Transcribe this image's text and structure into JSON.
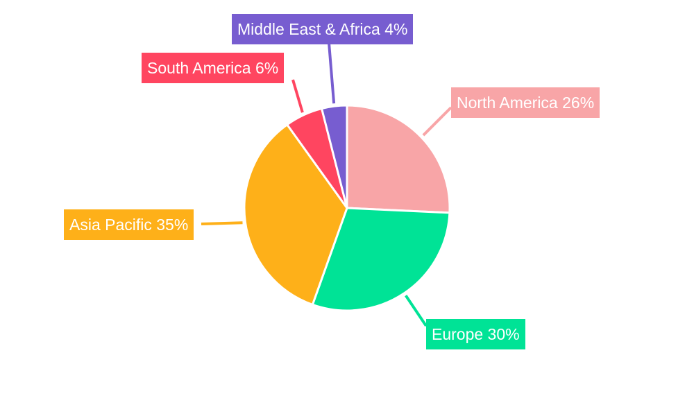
{
  "chart_data": {
    "type": "pie",
    "title": "",
    "start_angle": "12 o'clock, clockwise",
    "legend": "none (outside callout labels)",
    "slices": [
      {
        "label": "North America",
        "value": 26,
        "text": "North America 26%",
        "color": "#F8A5A7"
      },
      {
        "label": "Europe",
        "value": 30,
        "text": "Europe 30%",
        "color": "#00E396"
      },
      {
        "label": "Asia Pacific",
        "value": 35,
        "text": "Asia Pacific 35%",
        "color": "#FEB019"
      },
      {
        "label": "South America",
        "value": 6,
        "text": "South America 6%",
        "color": "#FF4560"
      },
      {
        "label": "Middle East & Africa",
        "value": 4,
        "text": "Middle East & Africa 4%",
        "color": "#775DD0"
      }
    ]
  }
}
